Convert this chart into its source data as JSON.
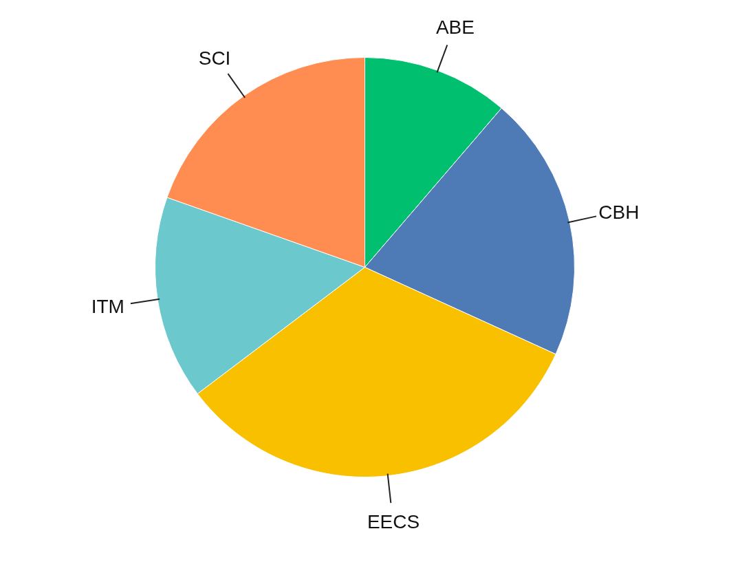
{
  "chart_data": {
    "type": "pie",
    "categories": [
      "ABE",
      "CBH",
      "EECS",
      "ITM",
      "SCI"
    ],
    "values": [
      11.3,
      20.5,
      32.9,
      15.7,
      19.6
    ],
    "colors": [
      "#00bf6f",
      "#4e7ab5",
      "#f9c000",
      "#6bc8cc",
      "#ff8c50"
    ]
  }
}
